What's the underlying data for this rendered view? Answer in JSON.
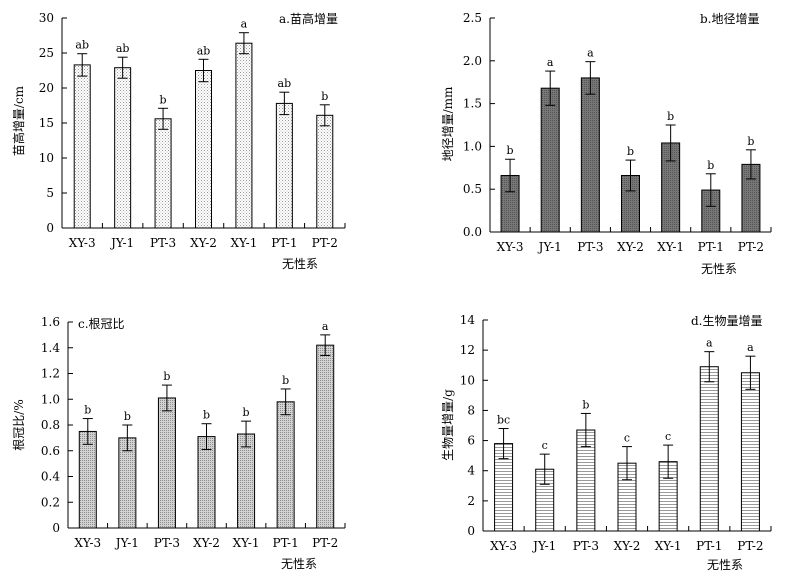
{
  "chart_data": [
    {
      "type": "bar",
      "title": "a.苗高增量",
      "ylabel": "苗高增量/cm",
      "xlabel": "无性系",
      "categories": [
        "XY-3",
        "JY-1",
        "PT-3",
        "XY-2",
        "XY-1",
        "PT-1",
        "PT-2"
      ],
      "values": [
        23.3,
        22.9,
        15.6,
        22.5,
        26.4,
        17.8,
        16.1
      ],
      "errors": [
        1.6,
        1.5,
        1.5,
        1.6,
        1.5,
        1.6,
        1.5
      ],
      "labels": [
        "ab",
        "ab",
        "b",
        "ab",
        "a",
        "ab",
        "b"
      ],
      "ylim": [
        0,
        30
      ],
      "yticks": [
        "0",
        "5",
        "10",
        "15",
        "20",
        "25",
        "30"
      ],
      "fill": "#e2e2e2",
      "pattern": "dots"
    },
    {
      "type": "bar",
      "title": "b.地径增量",
      "ylabel": "地径增量/mm",
      "xlabel": "无性系",
      "categories": [
        "XY-3",
        "JY-1",
        "PT-3",
        "XY-2",
        "XY-1",
        "PT-1",
        "PT-2"
      ],
      "values": [
        0.66,
        1.68,
        1.8,
        0.66,
        1.04,
        0.49,
        0.79
      ],
      "errors": [
        0.19,
        0.2,
        0.19,
        0.18,
        0.21,
        0.19,
        0.17
      ],
      "labels": [
        "b",
        "a",
        "a",
        "b",
        "b",
        "b",
        "b"
      ],
      "ylim": [
        0,
        2.5
      ],
      "yticks": [
        "0.0",
        "0.5",
        "1.0",
        "1.5",
        "2.0",
        "2.5"
      ],
      "fill": "#6e6e6e",
      "pattern": "dark"
    },
    {
      "type": "bar",
      "title": "c.根冠比",
      "ylabel": "根冠比/%",
      "xlabel": "无性系",
      "categories": [
        "XY-3",
        "JY-1",
        "PT-3",
        "XY-2",
        "XY-1",
        "PT-1",
        "PT-2"
      ],
      "values": [
        0.75,
        0.7,
        1.01,
        0.71,
        0.73,
        0.98,
        1.42
      ],
      "errors": [
        0.1,
        0.1,
        0.1,
        0.1,
        0.1,
        0.1,
        0.08
      ],
      "labels": [
        "b",
        "b",
        "b",
        "b",
        "b",
        "b",
        "a"
      ],
      "ylim": [
        0,
        1.6
      ],
      "yticks": [
        "0",
        "0.2",
        "0.4",
        "0.6",
        "0.8",
        "1.0",
        "1.2",
        "1.4",
        "1.6"
      ],
      "fill": "#c4c4c4",
      "pattern": "fine"
    },
    {
      "type": "bar",
      "title": "d.生物量增量",
      "ylabel": "生物量增量/g",
      "xlabel": "无性系",
      "categories": [
        "XY-3",
        "JY-1",
        "PT-3",
        "XY-2",
        "XY-1",
        "PT-1",
        "PT-2"
      ],
      "values": [
        5.8,
        4.1,
        6.7,
        4.5,
        4.6,
        10.9,
        10.5
      ],
      "errors": [
        1.0,
        1.0,
        1.1,
        1.1,
        1.1,
        1.0,
        1.1
      ],
      "labels": [
        "bc",
        "c",
        "b",
        "c",
        "c",
        "a",
        "a"
      ],
      "ylim": [
        0,
        14
      ],
      "yticks": [
        "0",
        "2",
        "4",
        "6",
        "8",
        "10",
        "12",
        "14"
      ],
      "fill": "#ededed",
      "pattern": "hlines"
    }
  ]
}
